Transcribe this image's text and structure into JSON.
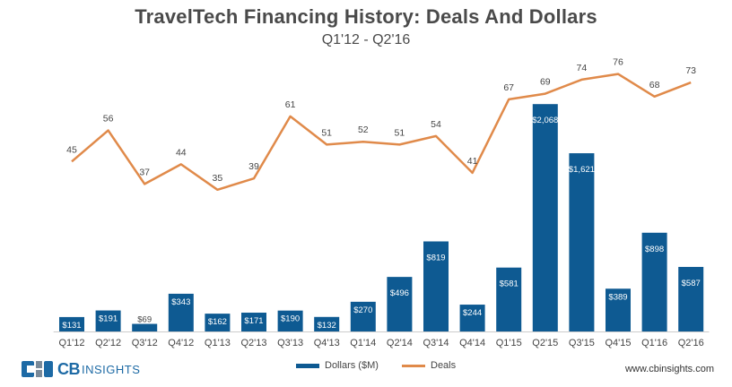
{
  "header": {
    "title": "TravelTech  Financing History: Deals And Dollars",
    "subtitle": "Q1'12 - Q2'16"
  },
  "chart_data": {
    "type": "bar+line",
    "title": "TravelTech  Financing History: Deals And Dollars",
    "subtitle": "Q1'12 - Q2'16",
    "categories": [
      "Q1'12",
      "Q2'12",
      "Q3'12",
      "Q4'12",
      "Q1'13",
      "Q2'13",
      "Q3'13",
      "Q4'13",
      "Q1'14",
      "Q2'14",
      "Q3'14",
      "Q4'14",
      "Q1'15",
      "Q2'15",
      "Q3'15",
      "Q4'15",
      "Q1'16",
      "Q2'16"
    ],
    "series": [
      {
        "name": "Dollars ($M)",
        "type": "bar",
        "color": "#0e5a92",
        "values": [
          131,
          191,
          69,
          343,
          162,
          171,
          190,
          132,
          270,
          496,
          819,
          244,
          581,
          2068,
          1621,
          389,
          898,
          587
        ],
        "labels": [
          "$131",
          "$191",
          "$69",
          "$343",
          "$162",
          "$171",
          "$190",
          "$132",
          "$270",
          "$496",
          "$819",
          "$244",
          "$581",
          "$2,068",
          "$1,621",
          "$389",
          "$898",
          "$587"
        ],
        "ylim": [
          0,
          2200
        ]
      },
      {
        "name": "Deals",
        "type": "line",
        "color": "#e08a4a",
        "values": [
          45,
          56,
          37,
          44,
          35,
          39,
          61,
          51,
          52,
          51,
          54,
          41,
          67,
          69,
          74,
          76,
          68,
          73
        ],
        "labels": [
          "45",
          "56",
          "37",
          "44",
          "35",
          "39",
          "61",
          "51",
          "52",
          "51",
          "54",
          "41",
          "67",
          "69",
          "74",
          "76",
          "68",
          "73"
        ],
        "ylim": [
          0,
          80
        ]
      }
    ],
    "xlabel": "",
    "ylabel": "",
    "grid": false,
    "legend": "bottom-center"
  },
  "legend": {
    "dollars_label": "Dollars ($M)",
    "deals_label": "Deals"
  },
  "footer": {
    "logo_cb": "CB",
    "logo_insights": "INSIGHTS",
    "url": "www.cbinsights.com"
  },
  "colors": {
    "bar": "#0e5a92",
    "line": "#e08a4a",
    "logo": "#1d6aa5"
  }
}
